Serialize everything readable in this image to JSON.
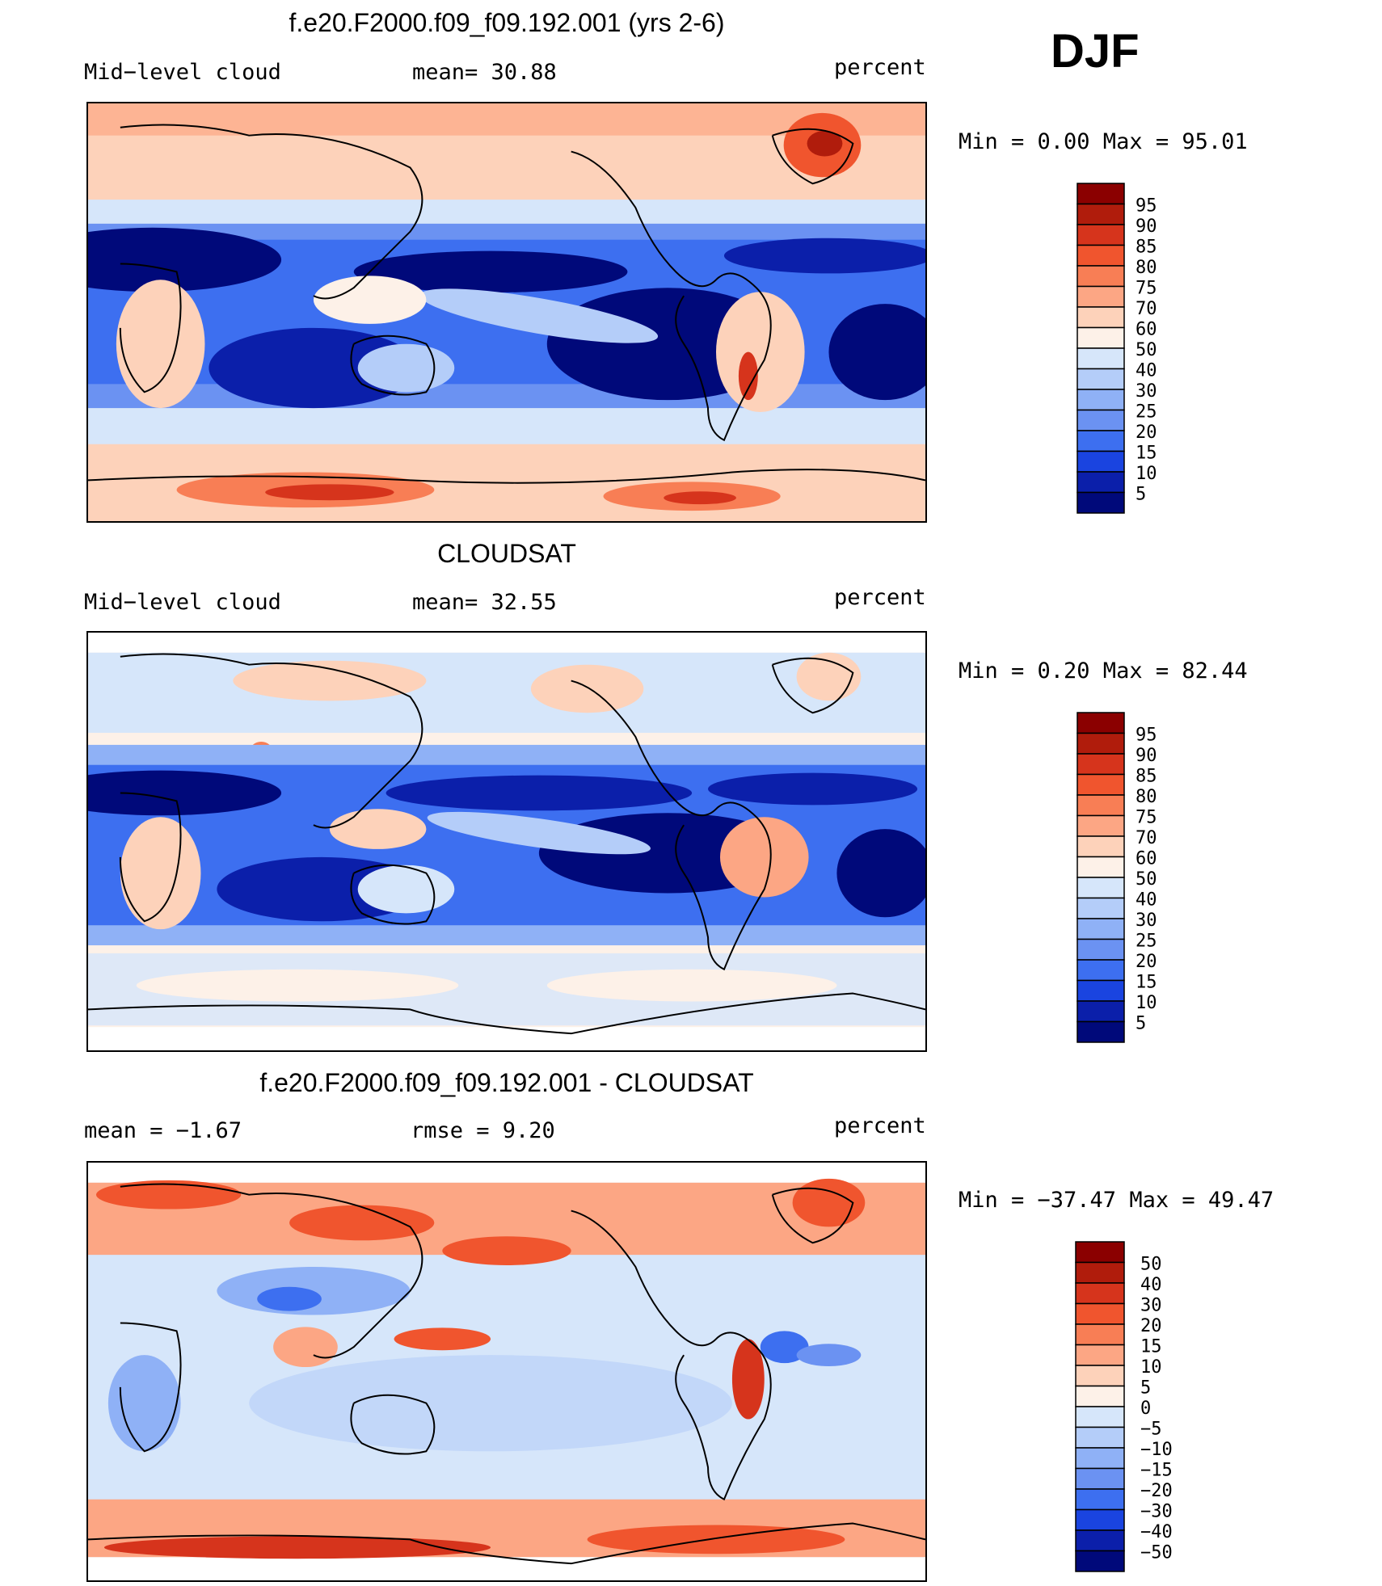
{
  "season": "DJF",
  "panels": [
    {
      "id": "model",
      "title": "f.e20.F2000.f09_f09.192.001 (yrs 2-6)",
      "left_label": "Mid−level cloud",
      "mid_label": "mean=   30.88",
      "right_label": "percent",
      "stats": "Min =     0.00  Max =    95.01",
      "kind": "abs",
      "colorbar_labels": [
        "95",
        "90",
        "85",
        "80",
        "75",
        "70",
        "60",
        "50",
        "40",
        "30",
        "25",
        "20",
        "15",
        "10",
        "5"
      ],
      "colorbar_colors": [
        "#8b0000",
        "#b01c0c",
        "#d6341c",
        "#f0552e",
        "#f87e55",
        "#fca684",
        "#fdd2ba",
        "#fdf1e8",
        "#d6e6fa",
        "#b4cdf9",
        "#8fb1f6",
        "#6b92f2",
        "#3d6ff0",
        "#1a44e0",
        "#0b1faa",
        "#00097a"
      ]
    },
    {
      "id": "obs",
      "title": "CLOUDSAT",
      "left_label": "Mid−level cloud",
      "mid_label": "mean=   32.55",
      "right_label": "percent",
      "stats": "Min =     0.20  Max =    82.44",
      "kind": "abs",
      "colorbar_labels": [
        "95",
        "90",
        "85",
        "80",
        "75",
        "70",
        "60",
        "50",
        "40",
        "30",
        "25",
        "20",
        "15",
        "10",
        "5"
      ],
      "colorbar_colors": [
        "#8b0000",
        "#b01c0c",
        "#d6341c",
        "#f0552e",
        "#f87e55",
        "#fca684",
        "#fdd2ba",
        "#fdf1e8",
        "#d6e6fa",
        "#b4cdf9",
        "#8fb1f6",
        "#6b92f2",
        "#3d6ff0",
        "#1a44e0",
        "#0b1faa",
        "#00097a"
      ]
    },
    {
      "id": "diff",
      "title": "f.e20.F2000.f09_f09.192.001 - CLOUDSAT",
      "left_label": "mean =   −1.67",
      "mid_label": "rmse =     9.20",
      "right_label": "percent",
      "stats": "Min = −37.47  Max =    49.47",
      "kind": "diff",
      "colorbar_labels": [
        "50",
        "40",
        "30",
        "20",
        "15",
        "10",
        "5",
        "0",
        "−5",
        "−10",
        "−15",
        "−20",
        "−30",
        "−40",
        "−50"
      ],
      "colorbar_colors": [
        "#8b0000",
        "#b01c0c",
        "#d6341c",
        "#f0552e",
        "#f87e55",
        "#fca684",
        "#fdd2ba",
        "#fdf1e8",
        "#d6e6fa",
        "#b4cdf9",
        "#8fb1f6",
        "#6b92f2",
        "#3d6ff0",
        "#1a44e0",
        "#0b1faa",
        "#00097a"
      ]
    }
  ]
}
